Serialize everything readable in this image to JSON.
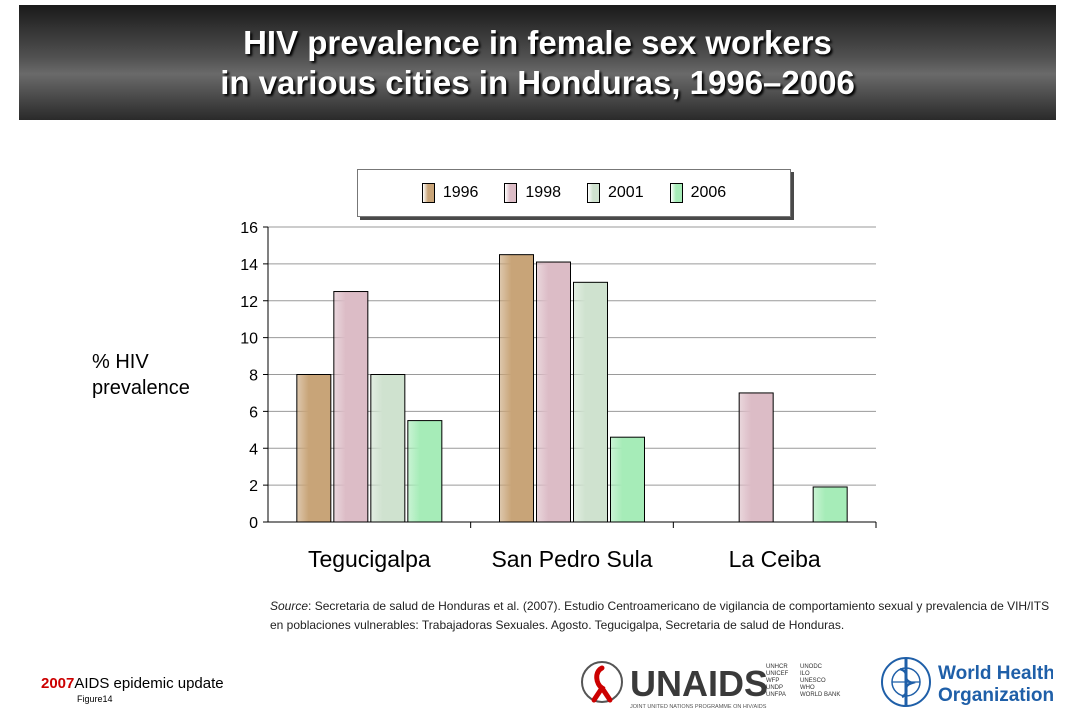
{
  "title": {
    "line1": "HIV prevalence in female sex workers",
    "line2": "in various cities in Honduras, 1996–2006"
  },
  "chart_data": {
    "type": "bar",
    "categories": [
      "Tegucigalpa",
      "San Pedro Sula",
      "La Ceiba"
    ],
    "series": [
      {
        "name": "1996",
        "color": "#c8a478",
        "values": [
          8.0,
          14.5,
          null
        ]
      },
      {
        "name": "1998",
        "color": "#dcbcc6",
        "values": [
          12.5,
          14.1,
          7.0
        ]
      },
      {
        "name": "2001",
        "color": "#cfe2cf",
        "values": [
          8.0,
          13.0,
          null
        ]
      },
      {
        "name": "2006",
        "color": "#a6ecb8",
        "values": [
          5.5,
          4.6,
          1.9
        ]
      }
    ],
    "ylabel": "% HIV prevalence",
    "ylabel_lines": [
      "% HIV",
      "prevalence"
    ],
    "ylim": [
      0,
      16
    ],
    "yticks": [
      0,
      2,
      4,
      6,
      8,
      10,
      12,
      14,
      16
    ],
    "grid": true,
    "legend": "top"
  },
  "source": {
    "prefix": "Source",
    "text": ": Secretaria de salud de Honduras et al. (2007). Estudio Centroamericano de vigilancia de comportamiento sexual y prevalencia de VIH/ITS en poblaciones vulnerables: Trabajadoras Sexuales. Agosto. Tegucigalpa, Secretaria de salud de Honduras."
  },
  "footer": {
    "year": "2007",
    "label": "AIDS epidemic update",
    "figure": "Figure14"
  },
  "logos": {
    "unaids_text": "UNAIDS",
    "unaids_tagline": "JOINT UNITED NATIONS PROGRAMME ON HIV/AIDS",
    "unaids_cosponsors": [
      "UNHCR",
      "UNICEF",
      "WFP",
      "UNDP",
      "UNFPA",
      "UNODC",
      "ILO",
      "UNESCO",
      "WHO",
      "WORLD BANK"
    ],
    "who_line1": "World Health",
    "who_line2": "Organization"
  }
}
